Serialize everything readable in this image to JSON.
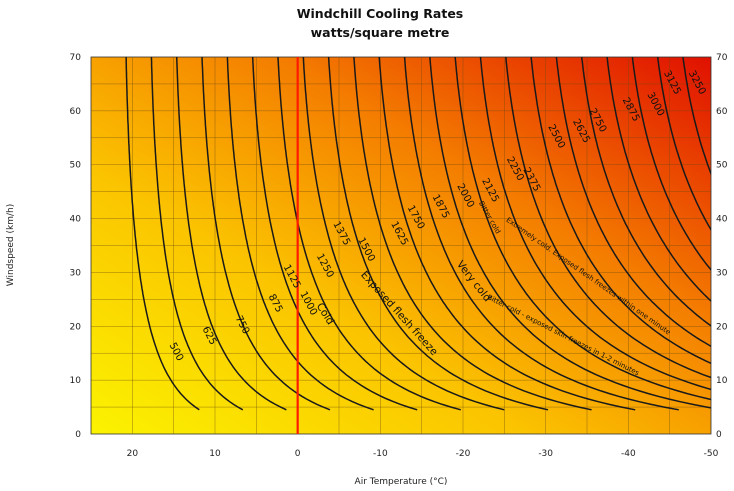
{
  "chart_data": {
    "type": "contour",
    "title": "Windchill Cooling Rates",
    "subtitle": "watts/square metre",
    "xlabel": "Air Temperature (°C)",
    "ylabel": "Windspeed (km/h)",
    "xlim": [
      25,
      -50
    ],
    "ylim": [
      0,
      70
    ],
    "x_ticks": [
      "20",
      "10",
      "0",
      "-10",
      "-20",
      "-30",
      "-40",
      "-50"
    ],
    "x_tick_values": [
      20,
      10,
      0,
      -10,
      -20,
      -30,
      -40,
      -50
    ],
    "y_ticks": [
      "0",
      "10",
      "20",
      "30",
      "40",
      "50",
      "60",
      "70"
    ],
    "y_tick_values": [
      0,
      10,
      20,
      30,
      40,
      50,
      60,
      70
    ],
    "grid": true,
    "reference_line": {
      "x": 0,
      "color": "#ff1a00"
    },
    "contours": [
      {
        "level": 500,
        "label": "500",
        "label_at": [
          15,
          15
        ]
      },
      {
        "level": 625,
        "label": "625",
        "label_at": [
          11,
          18
        ]
      },
      {
        "level": 750,
        "label": "750",
        "label_at": [
          7,
          20
        ]
      },
      {
        "level": 875,
        "label": "875",
        "label_at": [
          3,
          24
        ]
      },
      {
        "level": 1000,
        "label": "1000",
        "label_at": [
          -1,
          24
        ]
      },
      {
        "level": 1125,
        "label": "1125",
        "label_at": [
          1,
          29
        ]
      },
      {
        "level": 1250,
        "label": "1250",
        "label_at": [
          -3,
          31
        ]
      },
      {
        "level": 1375,
        "label": "1375",
        "label_at": [
          -5,
          37
        ]
      },
      {
        "level": 1500,
        "label": "1500",
        "label_at": [
          -8,
          34
        ]
      },
      {
        "level": 1625,
        "label": "1625",
        "label_at": [
          -12,
          37
        ]
      },
      {
        "level": 1750,
        "label": "1750",
        "label_at": [
          -14,
          40
        ]
      },
      {
        "level": 1875,
        "label": "1875",
        "label_at": [
          -17,
          42
        ]
      },
      {
        "level": 2000,
        "label": "2000",
        "label_at": [
          -20,
          44
        ]
      },
      {
        "level": 2125,
        "label": "2125",
        "label_at": [
          -23,
          45
        ]
      },
      {
        "level": 2250,
        "label": "2250",
        "label_at": [
          -26,
          49
        ]
      },
      {
        "level": 2375,
        "label": "2375",
        "label_at": [
          -28,
          47
        ]
      },
      {
        "level": 2500,
        "label": "2500",
        "label_at": [
          -31,
          55
        ]
      },
      {
        "level": 2625,
        "label": "2625",
        "label_at": [
          -34,
          56
        ]
      },
      {
        "level": 2750,
        "label": "2750",
        "label_at": [
          -36,
          58
        ]
      },
      {
        "level": 2875,
        "label": "2875",
        "label_at": [
          -40,
          60
        ]
      },
      {
        "level": 3000,
        "label": "3000",
        "label_at": [
          -43,
          61
        ]
      },
      {
        "level": 3125,
        "label": "3125",
        "label_at": [
          -45,
          65
        ]
      },
      {
        "level": 3250,
        "label": "3250",
        "label_at": [
          -48,
          65
        ]
      }
    ],
    "annotations": [
      {
        "text": "Cold",
        "at": [
          -3,
          22
        ],
        "angle": 58,
        "size": "large"
      },
      {
        "text": "Exposed flesh freeze",
        "at": [
          -12,
          22
        ],
        "angle": 48,
        "size": "large"
      },
      {
        "text": "Very cold",
        "at": [
          -21,
          28
        ],
        "angle": 52,
        "size": "large"
      },
      {
        "text": "Bitter cold",
        "at": [
          -23,
          40
        ],
        "angle": 60,
        "size": "small"
      },
      {
        "text": "Extremely cold. Exposed flesh freezes within one minute",
        "at": [
          -35,
          29
        ],
        "angle": 35,
        "size": "small"
      },
      {
        "text": "Bitter cold - exposed skin freezes in 1-2 minutes",
        "at": [
          -32,
          18
        ],
        "angle": 27,
        "size": "small"
      }
    ]
  }
}
